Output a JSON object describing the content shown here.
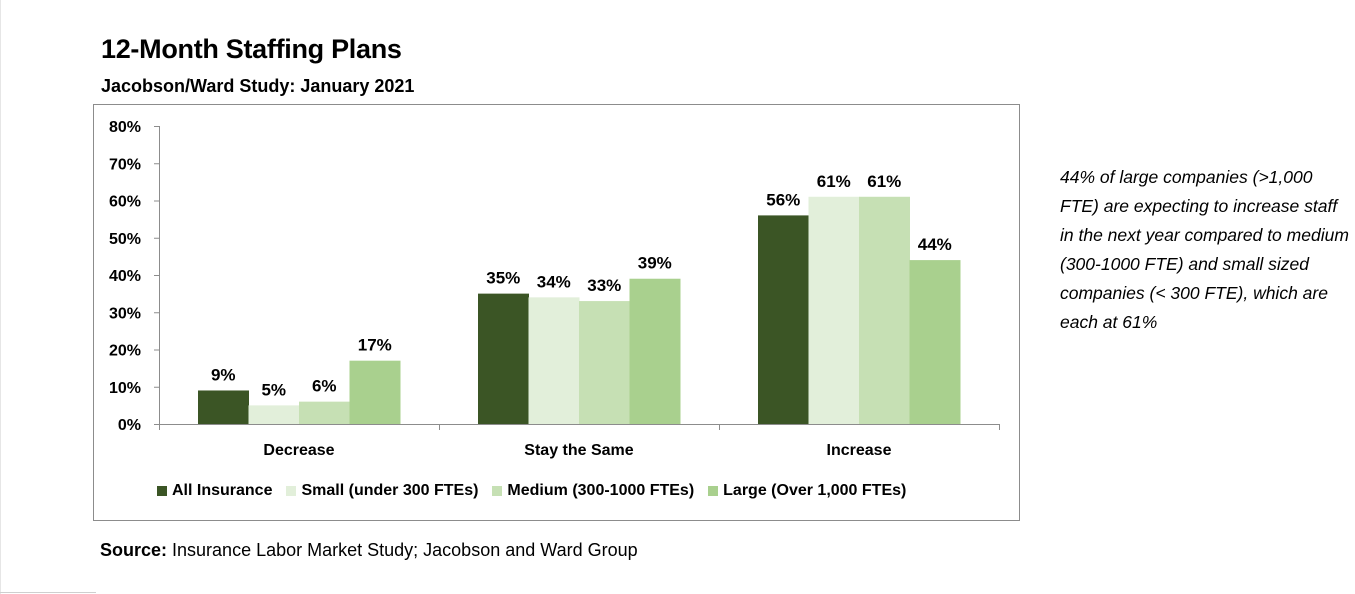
{
  "header": {
    "title": "12-Month Staffing Plans",
    "subtitle": "Jacobson/Ward Study: January 2021"
  },
  "annotation": "44% of large companies (>1,000 FTE) are expecting to increase staff in the next year compared to medium (300-1000 FTE) and small sized companies (< 300 FTE), which are each at 61%",
  "source": {
    "label": "Source:",
    "text": " Insurance Labor Market Study; Jacobson and Ward Group"
  },
  "chart_data": {
    "type": "bar",
    "title": "12-Month Staffing Plans",
    "subtitle": "Jacobson/Ward Study: January 2021",
    "xlabel": "",
    "ylabel": "",
    "categories": [
      "Decrease",
      "Stay the Same",
      "Increase"
    ],
    "ylim": [
      0,
      80
    ],
    "yticks": [
      0,
      10,
      20,
      30,
      40,
      50,
      60,
      70,
      80
    ],
    "ytick_labels": [
      "0%",
      "10%",
      "20%",
      "30%",
      "40%",
      "50%",
      "60%",
      "70%",
      "80%"
    ],
    "grid": false,
    "legend_position": "bottom",
    "series": [
      {
        "name": "All Insurance",
        "color": "#3b5525",
        "values": [
          9,
          35,
          56
        ],
        "labels": [
          "9%",
          "35%",
          "56%"
        ]
      },
      {
        "name": "Small (under 300 FTEs)",
        "color": "#e2efda",
        "values": [
          5,
          34,
          61
        ],
        "labels": [
          "5%",
          "34%",
          "61%"
        ]
      },
      {
        "name": "Medium (300-1000 FTEs)",
        "color": "#c6e0b4",
        "values": [
          6,
          33,
          61
        ],
        "labels": [
          "6%",
          "33%",
          "61%"
        ]
      },
      {
        "name": "Large (Over 1,000 FTEs)",
        "color": "#a9d08e",
        "values": [
          17,
          39,
          44
        ],
        "labels": [
          "17%",
          "39%",
          "44%"
        ]
      }
    ]
  }
}
